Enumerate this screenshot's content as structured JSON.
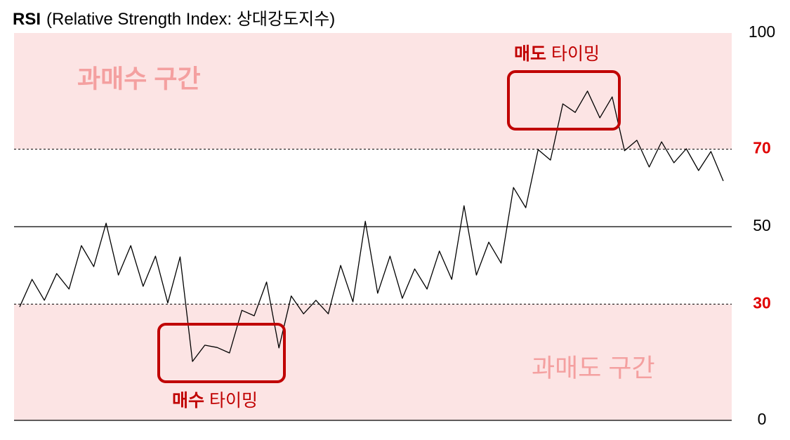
{
  "chart_data": {
    "type": "line",
    "title": "RSI",
    "subtitle": "(Relative Strength Index: 상대강도지수)",
    "ylim": [
      0,
      100
    ],
    "yticks": [
      0,
      30,
      50,
      70,
      100
    ],
    "overbought": 70,
    "oversold": 30,
    "zone_color": "#fce4e4",
    "threshold_color": "#e00000",
    "line_color": "#000000",
    "box_color": "#c00000",
    "zone_label_color": "#f4a0a0",
    "overbought_label": "과매수 구간",
    "oversold_label": "과매도 구간",
    "sell_signal": {
      "bold": "매도",
      "text": "타이밍"
    },
    "buy_signal": {
      "bold": "매수",
      "text": "타이밍"
    },
    "values": [
      29.3,
      36.4,
      31,
      37.9,
      33.9,
      45.1,
      39.7,
      50.9,
      37.5,
      45.1,
      34.6,
      42.4,
      30.3,
      42.2,
      15.2,
      19.4,
      18.8,
      17.4,
      28.4,
      27,
      35.7,
      18.7,
      32.1,
      27.5,
      31,
      27.5,
      40,
      30.6,
      51.4,
      32.8,
      42.4,
      31.5,
      39.1,
      33.9,
      43.7,
      36.4,
      55.4,
      37.5,
      46,
      40.6,
      60.1,
      54.9,
      69.9,
      67.2,
      81.7,
      79.5,
      85,
      78.1,
      83.5,
      69.6,
      72.3,
      65.4,
      71.9,
      66.5,
      70.1,
      64.5,
      69.4,
      61.8
    ]
  }
}
